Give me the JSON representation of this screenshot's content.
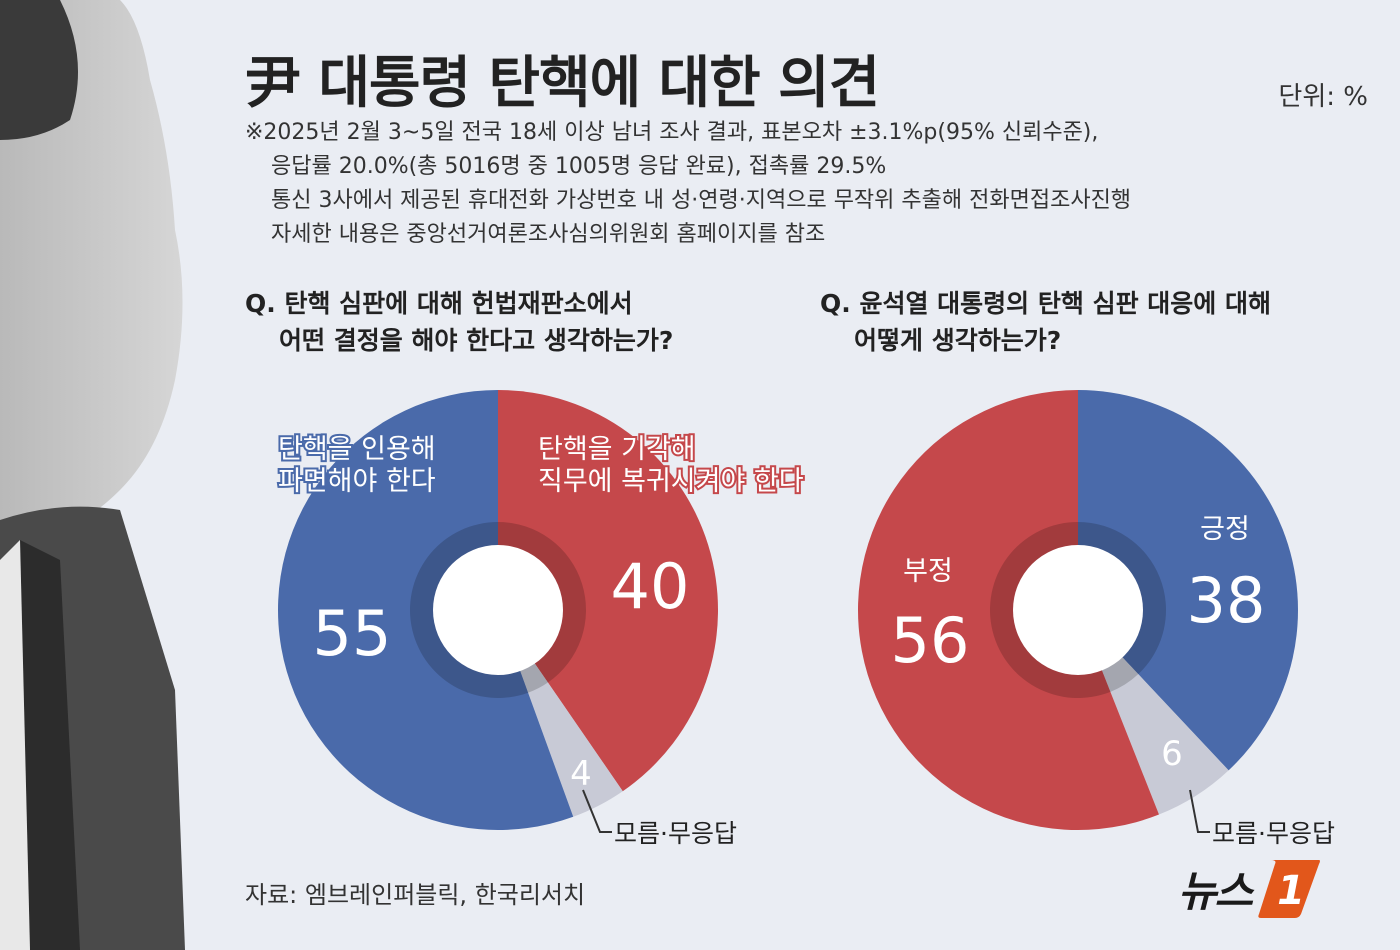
{
  "header": {
    "title": "尹 대통령 탄핵에 대한 의견",
    "unit_label": "단위: %"
  },
  "notes": [
    "※2025년 2월 3~5일 전국 18세 이상 남녀 조사 결과, 표본오차 ±3.1%p(95% 신뢰수준),",
    "응답률 20.0%(총  5016명 중 1005명 응답 완료), 접촉률 29.5%",
    "통신 3사에서 제공된 휴대전화 가상번호 내 성·연령·지역으로 무작위 추출해 전화면접조사진행",
    "자세한 내용은 중앙선거여론조사심의위원회 홈페이지를 참조"
  ],
  "questions": {
    "q1_line1": "Q. 탄핵 심판에 대해 헌법재판소에서",
    "q1_line2": "어떤 결정을 해야 한다고 생각하는가?",
    "q2_line1": "Q. 윤석열 대통령의 탄핵 심판 대응에 대해",
    "q2_line2": "어떻게 생각하는가?"
  },
  "chart_data": [
    {
      "type": "pie",
      "variant": "donut",
      "slices": [
        {
          "label_lines": [
            "탄핵을 기각해",
            "직무에 복귀시켜야 한다"
          ],
          "value": 40,
          "color": "#c5484b"
        },
        {
          "label_lines": [
            "모름·무응답"
          ],
          "value": 4,
          "color": "#c8cad6"
        },
        {
          "label_lines": [
            "탄핵을 인용해",
            "파면해야 한다"
          ],
          "value": 55,
          "color": "#4a6aaa"
        }
      ]
    },
    {
      "type": "pie",
      "variant": "donut",
      "slices": [
        {
          "label_lines": [
            "긍정"
          ],
          "value": 38,
          "color": "#4a6aaa"
        },
        {
          "label_lines": [
            "모름·무응답"
          ],
          "value": 6,
          "color": "#c8cad6"
        },
        {
          "label_lines": [
            "부정"
          ],
          "value": 56,
          "color": "#c5484b"
        }
      ]
    }
  ],
  "footer": {
    "source": "자료: 엠브레인퍼블릭, 한국리서치",
    "logo_text": "뉴스",
    "logo_mark": "1"
  },
  "colors": {
    "background": "#eaedf3",
    "positive_blue": "#4a6aaa",
    "negative_red": "#c5484b",
    "unknown_gray": "#c8cad6"
  }
}
